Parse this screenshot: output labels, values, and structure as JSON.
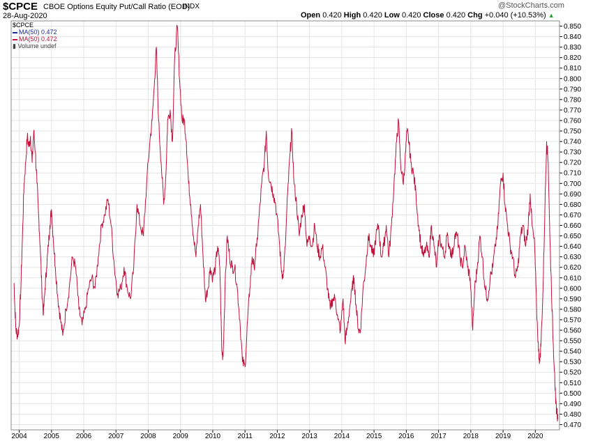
{
  "header": {
    "ticker": "$CPCE",
    "subtitle": "CBOE Options Equity Put/Call Ratio (EOD)",
    "exchange": "INDX",
    "date": "28-Aug-2020",
    "watermark": "@StockCharts.com",
    "open_label": "Open",
    "open": "0.420",
    "high_label": "High",
    "high": "0.420",
    "low_label": "Low",
    "low": "0.420",
    "close_label": "Close",
    "close": "0.420",
    "chg_label": "Chg",
    "chg": "+0.040 (+10.53%)",
    "chg_arrow": "▲"
  },
  "legend": {
    "symbol": "$CPCE",
    "ma1": "MA(50) 0.472",
    "ma2": "MA(50) 0.472",
    "volume": "Volume undef"
  },
  "colors": {
    "line": "#c0103a",
    "ma1": "#1a2aa0",
    "grid": "#e4e4e4",
    "axis": "#000000"
  },
  "chart_data": {
    "type": "line",
    "title": "CBOE Options Equity Put/Call Ratio (EOD)",
    "xlabel": "",
    "ylabel": "",
    "xlim": [
      2003.75,
      2020.75
    ],
    "ylim": [
      0.465,
      0.855
    ],
    "y_ticks": [
      "0.470",
      "0.480",
      "0.490",
      "0.500",
      "0.510",
      "0.520",
      "0.530",
      "0.540",
      "0.550",
      "0.560",
      "0.570",
      "0.580",
      "0.590",
      "0.600",
      "0.610",
      "0.620",
      "0.630",
      "0.640",
      "0.650",
      "0.660",
      "0.670",
      "0.680",
      "0.690",
      "0.700",
      "0.710",
      "0.720",
      "0.730",
      "0.740",
      "0.750",
      "0.760",
      "0.770",
      "0.780",
      "0.790",
      "0.800",
      "0.810",
      "0.820",
      "0.830",
      "0.840",
      "0.850"
    ],
    "x_ticks": [
      {
        "label": "2004",
        "value": 2004
      },
      {
        "label": "2005",
        "value": 2005
      },
      {
        "label": "2006",
        "value": 2006
      },
      {
        "label": "2007",
        "value": 2007
      },
      {
        "label": "2008",
        "value": 2008
      },
      {
        "label": "2009",
        "value": 2009
      },
      {
        "label": "2010",
        "value": 2010
      },
      {
        "label": "2011",
        "value": 2011
      },
      {
        "label": "2012",
        "value": 2012
      },
      {
        "label": "2013",
        "value": 2013
      },
      {
        "label": "2014",
        "value": 2014
      },
      {
        "label": "2015",
        "value": 2015
      },
      {
        "label": "2016",
        "value": 2016
      },
      {
        "label": "2017",
        "value": 2017
      },
      {
        "label": "2018",
        "value": 2018
      },
      {
        "label": "2019",
        "value": 2019
      },
      {
        "label": "2020",
        "value": 2020
      }
    ],
    "grid": true,
    "series": [
      {
        "name": "MA(50)",
        "points": [
          [
            2003.84,
            0.605
          ],
          [
            2003.86,
            0.585
          ],
          [
            2003.9,
            0.56
          ],
          [
            2003.95,
            0.555
          ],
          [
            2004.0,
            0.565
          ],
          [
            2004.05,
            0.6
          ],
          [
            2004.1,
            0.65
          ],
          [
            2004.15,
            0.7
          ],
          [
            2004.2,
            0.72
          ],
          [
            2004.25,
            0.745
          ],
          [
            2004.3,
            0.735
          ],
          [
            2004.35,
            0.745
          ],
          [
            2004.4,
            0.72
          ],
          [
            2004.45,
            0.75
          ],
          [
            2004.5,
            0.73
          ],
          [
            2004.55,
            0.7
          ],
          [
            2004.6,
            0.67
          ],
          [
            2004.65,
            0.64
          ],
          [
            2004.7,
            0.6
          ],
          [
            2004.75,
            0.575
          ],
          [
            2004.8,
            0.6
          ],
          [
            2004.85,
            0.62
          ],
          [
            2004.9,
            0.64
          ],
          [
            2004.95,
            0.66
          ],
          [
            2005.0,
            0.675
          ],
          [
            2005.05,
            0.65
          ],
          [
            2005.12,
            0.62
          ],
          [
            2005.2,
            0.59
          ],
          [
            2005.28,
            0.57
          ],
          [
            2005.35,
            0.555
          ],
          [
            2005.45,
            0.58
          ],
          [
            2005.55,
            0.6
          ],
          [
            2005.65,
            0.63
          ],
          [
            2005.75,
            0.62
          ],
          [
            2005.85,
            0.58
          ],
          [
            2005.95,
            0.565
          ],
          [
            2006.05,
            0.58
          ],
          [
            2006.15,
            0.6
          ],
          [
            2006.25,
            0.61
          ],
          [
            2006.35,
            0.6
          ],
          [
            2006.45,
            0.63
          ],
          [
            2006.55,
            0.66
          ],
          [
            2006.65,
            0.67
          ],
          [
            2006.75,
            0.685
          ],
          [
            2006.85,
            0.66
          ],
          [
            2006.95,
            0.62
          ],
          [
            2007.05,
            0.595
          ],
          [
            2007.15,
            0.6
          ],
          [
            2007.25,
            0.62
          ],
          [
            2007.35,
            0.6
          ],
          [
            2007.45,
            0.59
          ],
          [
            2007.55,
            0.62
          ],
          [
            2007.65,
            0.68
          ],
          [
            2007.75,
            0.66
          ],
          [
            2007.85,
            0.65
          ],
          [
            2007.95,
            0.7
          ],
          [
            2008.05,
            0.74
          ],
          [
            2008.12,
            0.76
          ],
          [
            2008.2,
            0.8
          ],
          [
            2008.25,
            0.83
          ],
          [
            2008.32,
            0.76
          ],
          [
            2008.4,
            0.72
          ],
          [
            2008.48,
            0.68
          ],
          [
            2008.55,
            0.71
          ],
          [
            2008.6,
            0.76
          ],
          [
            2008.68,
            0.77
          ],
          [
            2008.75,
            0.74
          ],
          [
            2008.82,
            0.82
          ],
          [
            2008.9,
            0.85
          ],
          [
            2008.97,
            0.8
          ],
          [
            2009.05,
            0.76
          ],
          [
            2009.12,
            0.76
          ],
          [
            2009.18,
            0.74
          ],
          [
            2009.25,
            0.7
          ],
          [
            2009.32,
            0.68
          ],
          [
            2009.4,
            0.65
          ],
          [
            2009.48,
            0.63
          ],
          [
            2009.55,
            0.66
          ],
          [
            2009.62,
            0.68
          ],
          [
            2009.7,
            0.63
          ],
          [
            2009.77,
            0.59
          ],
          [
            2009.85,
            0.6
          ],
          [
            2009.92,
            0.62
          ],
          [
            2010.0,
            0.61
          ],
          [
            2010.08,
            0.62
          ],
          [
            2010.15,
            0.64
          ],
          [
            2010.22,
            0.62
          ],
          [
            2010.28,
            0.54
          ],
          [
            2010.32,
            0.535
          ],
          [
            2010.38,
            0.6
          ],
          [
            2010.45,
            0.65
          ],
          [
            2010.52,
            0.63
          ],
          [
            2010.6,
            0.62
          ],
          [
            2010.68,
            0.62
          ],
          [
            2010.76,
            0.6
          ],
          [
            2010.84,
            0.57
          ],
          [
            2010.92,
            0.53
          ],
          [
            2011.0,
            0.525
          ],
          [
            2011.08,
            0.57
          ],
          [
            2011.15,
            0.6
          ],
          [
            2011.22,
            0.63
          ],
          [
            2011.28,
            0.62
          ],
          [
            2011.36,
            0.64
          ],
          [
            2011.44,
            0.67
          ],
          [
            2011.52,
            0.7
          ],
          [
            2011.6,
            0.72
          ],
          [
            2011.66,
            0.75
          ],
          [
            2011.72,
            0.71
          ],
          [
            2011.8,
            0.7
          ],
          [
            2011.88,
            0.69
          ],
          [
            2011.95,
            0.68
          ],
          [
            2012.05,
            0.65
          ],
          [
            2012.12,
            0.62
          ],
          [
            2012.18,
            0.61
          ],
          [
            2012.25,
            0.64
          ],
          [
            2012.32,
            0.69
          ],
          [
            2012.4,
            0.73
          ],
          [
            2012.45,
            0.75
          ],
          [
            2012.52,
            0.7
          ],
          [
            2012.6,
            0.68
          ],
          [
            2012.68,
            0.65
          ],
          [
            2012.76,
            0.67
          ],
          [
            2012.84,
            0.68
          ],
          [
            2012.92,
            0.64
          ],
          [
            2013.0,
            0.65
          ],
          [
            2013.08,
            0.64
          ],
          [
            2013.16,
            0.66
          ],
          [
            2013.24,
            0.64
          ],
          [
            2013.32,
            0.63
          ],
          [
            2013.4,
            0.64
          ],
          [
            2013.48,
            0.62
          ],
          [
            2013.56,
            0.6
          ],
          [
            2013.64,
            0.58
          ],
          [
            2013.72,
            0.59
          ],
          [
            2013.8,
            0.59
          ],
          [
            2013.88,
            0.57
          ],
          [
            2013.96,
            0.56
          ],
          [
            2014.04,
            0.59
          ],
          [
            2014.1,
            0.55
          ],
          [
            2014.16,
            0.56
          ],
          [
            2014.24,
            0.58
          ],
          [
            2014.32,
            0.6
          ],
          [
            2014.38,
            0.61
          ],
          [
            2014.45,
            0.58
          ],
          [
            2014.52,
            0.56
          ],
          [
            2014.58,
            0.56
          ],
          [
            2014.66,
            0.6
          ],
          [
            2014.74,
            0.62
          ],
          [
            2014.82,
            0.65
          ],
          [
            2014.9,
            0.64
          ],
          [
            2014.98,
            0.63
          ],
          [
            2015.06,
            0.65
          ],
          [
            2015.14,
            0.66
          ],
          [
            2015.22,
            0.63
          ],
          [
            2015.3,
            0.64
          ],
          [
            2015.38,
            0.66
          ],
          [
            2015.46,
            0.63
          ],
          [
            2015.54,
            0.66
          ],
          [
            2015.62,
            0.7
          ],
          [
            2015.7,
            0.74
          ],
          [
            2015.76,
            0.76
          ],
          [
            2015.82,
            0.72
          ],
          [
            2015.9,
            0.7
          ],
          [
            2015.96,
            0.72
          ],
          [
            2016.02,
            0.75
          ],
          [
            2016.08,
            0.74
          ],
          [
            2016.14,
            0.72
          ],
          [
            2016.22,
            0.71
          ],
          [
            2016.3,
            0.69
          ],
          [
            2016.38,
            0.66
          ],
          [
            2016.46,
            0.64
          ],
          [
            2016.54,
            0.63
          ],
          [
            2016.62,
            0.64
          ],
          [
            2016.7,
            0.63
          ],
          [
            2016.78,
            0.66
          ],
          [
            2016.86,
            0.64
          ],
          [
            2016.94,
            0.62
          ],
          [
            2017.02,
            0.65
          ],
          [
            2017.1,
            0.64
          ],
          [
            2017.18,
            0.63
          ],
          [
            2017.26,
            0.65
          ],
          [
            2017.34,
            0.64
          ],
          [
            2017.42,
            0.63
          ],
          [
            2017.5,
            0.65
          ],
          [
            2017.58,
            0.65
          ],
          [
            2017.66,
            0.63
          ],
          [
            2017.74,
            0.62
          ],
          [
            2017.82,
            0.64
          ],
          [
            2017.9,
            0.62
          ],
          [
            2017.98,
            0.61
          ],
          [
            2018.06,
            0.56
          ],
          [
            2018.12,
            0.6
          ],
          [
            2018.2,
            0.62
          ],
          [
            2018.28,
            0.65
          ],
          [
            2018.36,
            0.63
          ],
          [
            2018.44,
            0.6
          ],
          [
            2018.52,
            0.59
          ],
          [
            2018.6,
            0.61
          ],
          [
            2018.68,
            0.62
          ],
          [
            2018.76,
            0.64
          ],
          [
            2018.84,
            0.66
          ],
          [
            2018.92,
            0.7
          ],
          [
            2019.0,
            0.71
          ],
          [
            2019.06,
            0.68
          ],
          [
            2019.14,
            0.66
          ],
          [
            2019.22,
            0.64
          ],
          [
            2019.3,
            0.63
          ],
          [
            2019.38,
            0.61
          ],
          [
            2019.46,
            0.62
          ],
          [
            2019.54,
            0.65
          ],
          [
            2019.62,
            0.66
          ],
          [
            2019.7,
            0.64
          ],
          [
            2019.78,
            0.66
          ],
          [
            2019.84,
            0.69
          ],
          [
            2019.9,
            0.66
          ],
          [
            2019.98,
            0.64
          ],
          [
            2020.04,
            0.58
          ],
          [
            2020.1,
            0.54
          ],
          [
            2020.14,
            0.53
          ],
          [
            2020.18,
            0.55
          ],
          [
            2020.24,
            0.6
          ],
          [
            2020.3,
            0.68
          ],
          [
            2020.35,
            0.74
          ],
          [
            2020.4,
            0.72
          ],
          [
            2020.45,
            0.65
          ],
          [
            2020.5,
            0.6
          ],
          [
            2020.55,
            0.55
          ],
          [
            2020.6,
            0.52
          ],
          [
            2020.63,
            0.49
          ],
          [
            2020.66,
            0.485
          ],
          [
            2020.7,
            0.475
          ]
        ]
      }
    ]
  }
}
